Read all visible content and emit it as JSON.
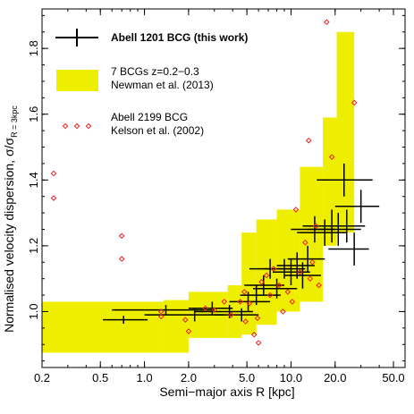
{
  "chart_data": {
    "type": "scatter",
    "xlabel": "Semi−major axis R [kpc]",
    "ylabel": "Normalised velocity dispersion, σ/σ",
    "ylabel_sub": "R = 3kpc",
    "xscale": "log",
    "xlim": [
      0.2,
      60
    ],
    "ylim": [
      0.83,
      1.92
    ],
    "x_ticks": [
      0.2,
      0.5,
      1.0,
      2.0,
      5.0,
      10.0,
      20.0,
      50.0
    ],
    "x_tick_labels": [
      "0.2",
      "0.5",
      "1.0",
      "2.0",
      "5.0",
      "10.0",
      "20.0",
      "50.0"
    ],
    "y_ticks": [
      1.0,
      1.2,
      1.4,
      1.6,
      1.8
    ],
    "y_tick_labels": [
      "1.0",
      "1.2",
      "1.4",
      "1.6",
      "1.8"
    ],
    "legend_position": "top-left",
    "colors": {
      "this_work": "#000000",
      "newman_band": "#eeee00",
      "kelson": "#ee2222"
    },
    "series": [
      {
        "name": "Abell 1201 BCG (this work)",
        "label_line": "Abell 1201 BCG (this work)",
        "kind": "errorbar",
        "points": [
          {
            "x": 0.72,
            "y": 0.975,
            "xerr": [
              0.52,
              1.05
            ],
            "yerr": 0.012
          },
          {
            "x": 1.4,
            "y": 1.005,
            "xerr": [
              0.6,
              3.0
            ],
            "yerr": 0.015
          },
          {
            "x": 2.2,
            "y": 0.99,
            "xerr": [
              1.0,
              3.5
            ],
            "yerr": 0.02
          },
          {
            "x": 2.9,
            "y": 1.01,
            "xerr": [
              2.0,
              4.0
            ],
            "yerr": 0.02
          },
          {
            "x": 3.8,
            "y": 1.0,
            "xerr": [
              2.2,
              5.5
            ],
            "yerr": 0.02
          },
          {
            "x": 4.6,
            "y": 0.99,
            "xerr": [
              3.0,
              6.0
            ],
            "yerr": 0.02
          },
          {
            "x": 5.1,
            "y": 1.03,
            "xerr": [
              3.8,
              7.2
            ],
            "yerr": 0.03
          },
          {
            "x": 5.8,
            "y": 1.05,
            "xerr": [
              4.5,
              8.5
            ],
            "yerr": 0.03
          },
          {
            "x": 6.5,
            "y": 1.08,
            "xerr": [
              4.8,
              9.0
            ],
            "yerr": 0.03
          },
          {
            "x": 7.2,
            "y": 1.13,
            "xerr": [
              5.2,
              10.0
            ],
            "yerr": 0.03
          },
          {
            "x": 8.0,
            "y": 1.07,
            "xerr": [
              5.5,
              11.0
            ],
            "yerr": 0.03
          },
          {
            "x": 9.0,
            "y": 1.13,
            "xerr": [
              6.5,
              12.5
            ],
            "yerr": 0.03
          },
          {
            "x": 10.0,
            "y": 1.12,
            "xerr": [
              7.5,
              13.5
            ],
            "yerr": 0.04
          },
          {
            "x": 11.0,
            "y": 1.14,
            "xerr": [
              8.0,
              14.5
            ],
            "yerr": 0.04
          },
          {
            "x": 12.0,
            "y": 1.11,
            "xerr": [
              9.0,
              16.0
            ],
            "yerr": 0.04
          },
          {
            "x": 13.0,
            "y": 1.16,
            "xerr": [
              9.5,
              17.0
            ],
            "yerr": 0.04
          },
          {
            "x": 14.5,
            "y": 1.25,
            "xerr": [
              10.0,
              20.0
            ],
            "yerr": 0.04
          },
          {
            "x": 17.0,
            "y": 1.24,
            "xerr": [
              11.0,
              24.0
            ],
            "yerr": 0.04
          },
          {
            "x": 19.0,
            "y": 1.26,
            "xerr": [
              12.0,
              27.0
            ],
            "yerr": 0.05
          },
          {
            "x": 21.0,
            "y": 1.25,
            "xerr": [
              13.0,
              30.0
            ],
            "yerr": 0.05
          },
          {
            "x": 24.0,
            "y": 1.26,
            "xerr": [
              16.0,
              32.0
            ],
            "yerr": 0.05
          },
          {
            "x": 23.0,
            "y": 1.4,
            "xerr": [
              15.0,
              36.0
            ],
            "yerr": 0.05
          },
          {
            "x": 27.0,
            "y": 1.19,
            "xerr": [
              18.0,
              34.0
            ],
            "yerr": 0.05
          },
          {
            "x": 30.0,
            "y": 1.32,
            "xerr": [
              20.0,
              40.0
            ],
            "yerr": 0.05
          }
        ]
      },
      {
        "name": "7 BCGs z=0.2−0.3",
        "label_line": "7 BCGs z=0.2−0.3",
        "label_line2": "Newman et al. (2013)",
        "kind": "band",
        "bins": [
          {
            "x0": 0.2,
            "x1": 1.35,
            "ylo": 0.875,
            "yhi": 1.03
          },
          {
            "x0": 1.35,
            "x1": 2.0,
            "ylo": 0.875,
            "yhi": 1.035
          },
          {
            "x0": 2.0,
            "x1": 3.7,
            "ylo": 0.92,
            "yhi": 1.06
          },
          {
            "x0": 3.7,
            "x1": 4.6,
            "ylo": 0.92,
            "yhi": 1.08
          },
          {
            "x0": 4.6,
            "x1": 5.8,
            "ylo": 0.93,
            "yhi": 1.24
          },
          {
            "x0": 5.8,
            "x1": 8.0,
            "ylo": 0.96,
            "yhi": 1.28
          },
          {
            "x0": 8.0,
            "x1": 11.5,
            "ylo": 1.0,
            "yhi": 1.31
          },
          {
            "x0": 11.5,
            "x1": 16.5,
            "ylo": 1.03,
            "yhi": 1.44
          },
          {
            "x0": 16.5,
            "x1": 20.5,
            "ylo": 1.2,
            "yhi": 1.59
          },
          {
            "x0": 20.5,
            "x1": 27.0,
            "ylo": 1.24,
            "yhi": 1.85
          }
        ]
      },
      {
        "name": "Abell 2199 BCG",
        "label_line": "Abell 2199 BCG",
        "label_line2": "Kelson et al. (2002)",
        "kind": "scatter",
        "points": [
          {
            "x": 0.24,
            "y": 1.42
          },
          {
            "x": 0.24,
            "y": 1.345
          },
          {
            "x": 0.7,
            "y": 1.23
          },
          {
            "x": 0.7,
            "y": 1.16
          },
          {
            "x": 1.3,
            "y": 1.0
          },
          {
            "x": 1.3,
            "y": 0.985
          },
          {
            "x": 1.9,
            "y": 0.975
          },
          {
            "x": 2.0,
            "y": 0.94
          },
          {
            "x": 2.6,
            "y": 1.01
          },
          {
            "x": 3.0,
            "y": 1.005
          },
          {
            "x": 3.5,
            "y": 1.03
          },
          {
            "x": 3.9,
            "y": 0.99
          },
          {
            "x": 4.5,
            "y": 1.03
          },
          {
            "x": 4.8,
            "y": 1.06
          },
          {
            "x": 4.9,
            "y": 0.97
          },
          {
            "x": 5.2,
            "y": 1.025
          },
          {
            "x": 5.6,
            "y": 0.93
          },
          {
            "x": 5.9,
            "y": 0.98
          },
          {
            "x": 6.0,
            "y": 0.905
          },
          {
            "x": 6.3,
            "y": 1.09
          },
          {
            "x": 6.8,
            "y": 1.11
          },
          {
            "x": 7.2,
            "y": 1.05
          },
          {
            "x": 7.6,
            "y": 1.13
          },
          {
            "x": 8.3,
            "y": 1.08
          },
          {
            "x": 8.8,
            "y": 1.0
          },
          {
            "x": 9.5,
            "y": 1.06
          },
          {
            "x": 10.2,
            "y": 1.03
          },
          {
            "x": 10.8,
            "y": 1.31
          },
          {
            "x": 11.5,
            "y": 1.12
          },
          {
            "x": 12.5,
            "y": 1.21
          },
          {
            "x": 13.5,
            "y": 1.1
          },
          {
            "x": 14.0,
            "y": 1.15
          },
          {
            "x": 14.8,
            "y": 1.26
          },
          {
            "x": 15.5,
            "y": 1.08
          },
          {
            "x": 13.2,
            "y": 1.52
          },
          {
            "x": 19.0,
            "y": 1.47
          },
          {
            "x": 17.5,
            "y": 1.88
          },
          {
            "x": 27.0,
            "y": 1.635
          }
        ]
      }
    ]
  }
}
